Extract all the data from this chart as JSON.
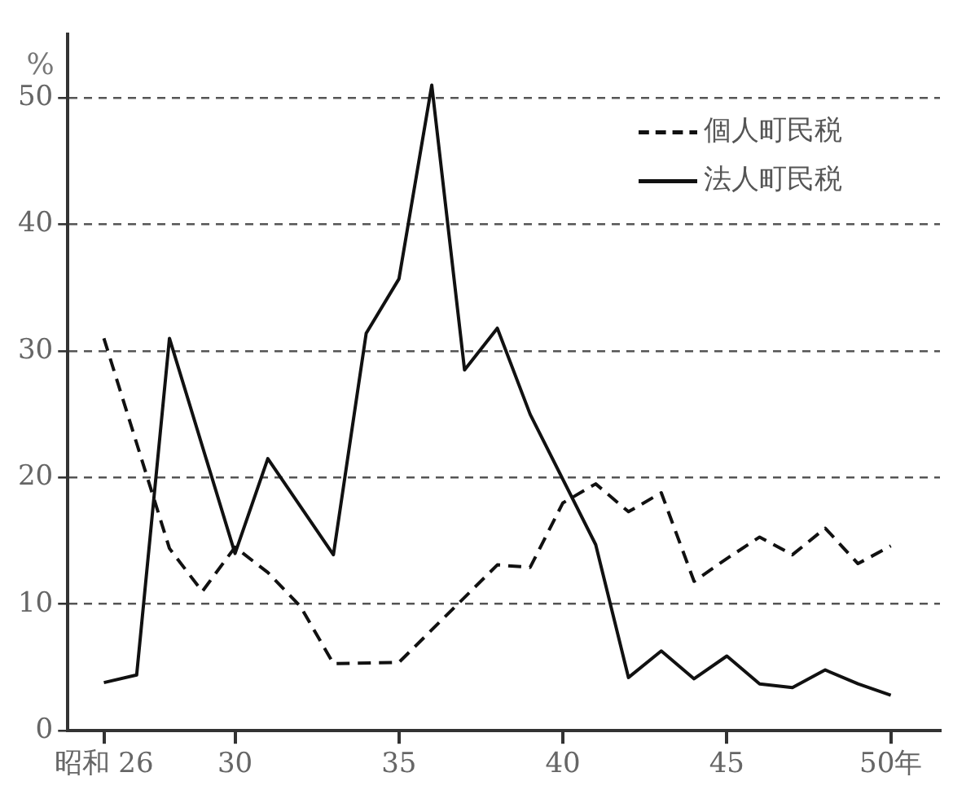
{
  "chart_data": {
    "type": "line",
    "ylabel": "%",
    "xlim": [
      24.9,
      51.5
    ],
    "ylim": [
      0,
      55
    ],
    "xticks": [
      {
        "value": 26,
        "label": "昭和 26"
      },
      30,
      35,
      40,
      45,
      {
        "value": 50,
        "label": "50年"
      }
    ],
    "yticks": [
      0,
      10,
      20,
      30,
      40,
      50
    ],
    "grid": "y",
    "legend": "top right",
    "marker": "none",
    "series": [
      {
        "name": "個人町民税",
        "color": "#111111",
        "line_style": "dashed",
        "x": [
          26,
          28,
          29,
          30,
          31,
          32,
          33,
          35,
          38,
          39,
          40,
          41,
          42,
          43,
          44,
          45,
          46,
          47,
          48,
          49,
          50
        ],
        "values": [
          31,
          14.4,
          11,
          14.5,
          12.5,
          9.8,
          5.3,
          5.4,
          13.1,
          12.9,
          18,
          19.5,
          17.3,
          18.8,
          11.8,
          13.6,
          15.3,
          13.9,
          16,
          13.2,
          14.6
        ]
      },
      {
        "name": "法人町民税",
        "color": "#111111",
        "line_style": "solid",
        "x": [
          26,
          27,
          28,
          30,
          31,
          33,
          34,
          35,
          36,
          37,
          38,
          39,
          41,
          42,
          43,
          44,
          45,
          46,
          47,
          48,
          49,
          50
        ],
        "values": [
          3.8,
          4.4,
          31,
          14,
          21.5,
          13.9,
          31.4,
          35.7,
          51,
          28.5,
          31.8,
          25,
          14.7,
          4.2,
          6.3,
          4.1,
          5.9,
          3.7,
          3.4,
          4.8,
          3.7,
          2.8
        ]
      }
    ]
  }
}
